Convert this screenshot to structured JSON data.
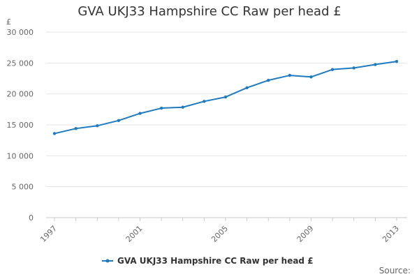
{
  "chart_data": {
    "type": "line",
    "title": "GVA UKJ33 Hampshire CC Raw per head £",
    "ylabel": "£",
    "xlabel": "",
    "x": [
      1997,
      1998,
      1999,
      2000,
      2001,
      2002,
      2003,
      2004,
      2005,
      2006,
      2007,
      2008,
      2009,
      2010,
      2011,
      2012,
      2013
    ],
    "series": [
      {
        "name": "GVA UKJ33 Hampshire CC Raw per head £",
        "color": "#1f7abf",
        "values": [
          13600,
          14400,
          14850,
          15700,
          16850,
          17700,
          17850,
          18800,
          19500,
          21000,
          22200,
          23000,
          22750,
          23950,
          24200,
          24750,
          25250
        ]
      }
    ],
    "ylim": [
      0,
      30000
    ],
    "yticks": [
      0,
      5000,
      10000,
      15000,
      20000,
      25000,
      30000
    ],
    "ytick_labels": [
      "0",
      "5 000",
      "10 000",
      "15 000",
      "20 000",
      "25 000",
      "30 000"
    ],
    "xticks": [
      1997,
      2001,
      2005,
      2009,
      2013
    ],
    "grid": true,
    "legend_position": "bottom"
  },
  "source_label": "Source:"
}
